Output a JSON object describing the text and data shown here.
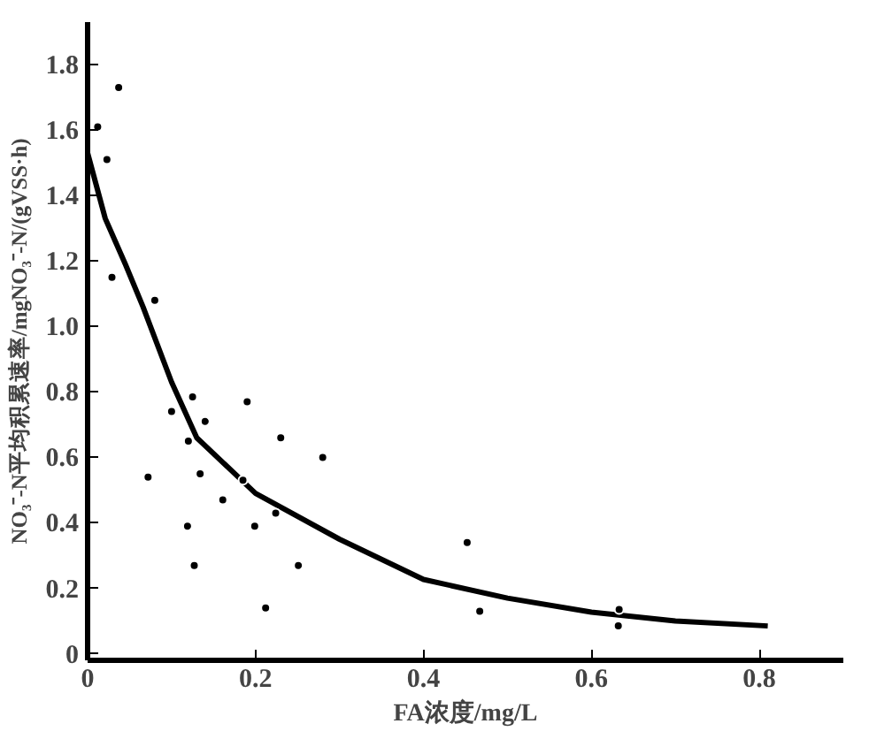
{
  "chart_data": {
    "type": "scatter",
    "xlabel": "FA浓度/mg/L",
    "ylabel": "NO₃⁻-N平均积累速率/mgNO₃⁻-N/(gVSS·h)",
    "xlim": [
      0,
      0.9
    ],
    "ylim": [
      -0.02,
      1.93
    ],
    "xticks": [
      0,
      0.2,
      0.4,
      0.6,
      0.8
    ],
    "yticks": [
      0,
      0.2,
      0.4,
      0.6,
      0.8,
      {
        "value": 1.0,
        "label": "1.0"
      },
      1.2,
      1.4,
      1.6,
      1.8
    ],
    "grid": false,
    "series": [
      {
        "marker": "circle",
        "color": "#000000",
        "x": [
          0.012,
          0.037,
          0.023,
          0.029,
          0.08,
          0.1,
          0.125,
          0.12,
          0.14,
          0.19,
          0.23,
          0.28,
          0.072,
          0.134,
          0.161,
          0.185,
          0.119,
          0.199,
          0.224,
          0.127,
          0.251,
          0.212,
          0.452,
          0.467,
          0.633,
          0.632
        ],
        "values": [
          1.61,
          1.73,
          1.51,
          1.15,
          1.08,
          0.74,
          0.785,
          0.65,
          0.71,
          0.77,
          0.66,
          0.6,
          0.54,
          0.55,
          0.47,
          0.53,
          0.39,
          0.39,
          0.43,
          0.27,
          0.27,
          0.14,
          0.34,
          0.13,
          0.135,
          0.085
        ]
      },
      {
        "type": "line",
        "marker": "none",
        "color": "#000000",
        "x": [
          0,
          0.021,
          0.045,
          0.066,
          0.1,
          0.13,
          0.2,
          0.3,
          0.4,
          0.5,
          0.6,
          0.7,
          0.81
        ],
        "values": [
          1.53,
          1.33,
          1.19,
          1.06,
          0.83,
          0.66,
          0.49,
          0.35,
          0.227,
          0.17,
          0.127,
          0.1,
          0.085
        ]
      }
    ]
  }
}
